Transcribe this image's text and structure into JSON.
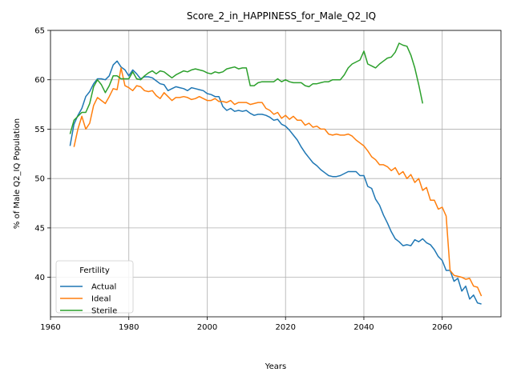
{
  "chart_data": {
    "type": "line",
    "title": "Score_2_in_HAPPINESS_for_Male_Q2_IQ",
    "xlabel": "Years",
    "ylabel": "% of Male Q2_IQ Population",
    "xlim": [
      1960,
      2075
    ],
    "ylim": [
      36,
      65
    ],
    "xticks": [
      1960,
      1980,
      2000,
      2020,
      2040,
      2060
    ],
    "yticks": [
      40,
      45,
      50,
      55,
      60,
      65
    ],
    "grid": true,
    "legend": {
      "title": "Fertility",
      "placement": "lower-left"
    },
    "series": [
      {
        "name": "Actual",
        "color": "#1f77b4",
        "x": [
          1965,
          1966,
          1967,
          1968,
          1969,
          1970,
          1971,
          1972,
          1973,
          1974,
          1975,
          1976,
          1977,
          1978,
          1979,
          1980,
          1981,
          1982,
          1983,
          1984,
          1985,
          1986,
          1987,
          1988,
          1989,
          1990,
          1991,
          1992,
          1993,
          1994,
          1995,
          1996,
          1997,
          1998,
          1999,
          2000,
          2001,
          2002,
          2003,
          2004,
          2005,
          2006,
          2007,
          2008,
          2009,
          2010,
          2011,
          2012,
          2013,
          2014,
          2015,
          2016,
          2017,
          2018,
          2019,
          2020,
          2021,
          2022,
          2023,
          2024,
          2025,
          2026,
          2027,
          2028,
          2029,
          2030,
          2031,
          2032,
          2033,
          2034,
          2035,
          2036,
          2037,
          2038,
          2039,
          2040,
          2041,
          2042,
          2043,
          2044,
          2045,
          2046,
          2047,
          2048,
          2049,
          2050,
          2051,
          2052,
          2053,
          2054,
          2055,
          2056,
          2057,
          2058,
          2059,
          2060,
          2061,
          2062,
          2063,
          2064,
          2065,
          2066,
          2067,
          2068,
          2069,
          2070
        ],
        "values": [
          53.3,
          55.5,
          56.4,
          57.1,
          58.3,
          58.8,
          59.6,
          60.1,
          60.1,
          60.0,
          60.4,
          61.5,
          61.9,
          61.3,
          61.0,
          60.4,
          61.0,
          60.6,
          60.1,
          60.3,
          60.3,
          60.2,
          59.9,
          59.6,
          59.5,
          58.9,
          59.1,
          59.3,
          59.2,
          59.1,
          58.9,
          59.2,
          59.1,
          59.0,
          58.9,
          58.6,
          58.5,
          58.3,
          58.3,
          57.3,
          56.9,
          57.1,
          56.8,
          56.9,
          56.8,
          56.9,
          56.6,
          56.4,
          56.5,
          56.5,
          56.4,
          56.2,
          55.9,
          56.0,
          55.5,
          55.3,
          54.9,
          54.4,
          53.9,
          53.2,
          52.6,
          52.1,
          51.6,
          51.3,
          50.9,
          50.6,
          50.3,
          50.2,
          50.2,
          50.3,
          50.5,
          50.7,
          50.7,
          50.7,
          50.3,
          50.3,
          49.2,
          49.0,
          47.9,
          47.3,
          46.3,
          45.5,
          44.6,
          43.9,
          43.6,
          43.2,
          43.3,
          43.2,
          43.8,
          43.6,
          43.9,
          43.5,
          43.3,
          42.8,
          42.1,
          41.7,
          40.7,
          40.7,
          39.6,
          39.9,
          38.6,
          39.1,
          37.8,
          38.2,
          37.4,
          37.3
        ]
      },
      {
        "name": "Ideal",
        "color": "#ff7f0e",
        "x": [
          1966,
          1967,
          1968,
          1969,
          1970,
          1971,
          1972,
          1973,
          1974,
          1975,
          1976,
          1977,
          1978,
          1979,
          1980,
          1981,
          1982,
          1983,
          1984,
          1985,
          1986,
          1987,
          1988,
          1989,
          1990,
          1991,
          1992,
          1993,
          1994,
          1995,
          1996,
          1997,
          1998,
          1999,
          2000,
          2001,
          2002,
          2003,
          2004,
          2005,
          2006,
          2007,
          2008,
          2009,
          2010,
          2011,
          2012,
          2013,
          2014,
          2015,
          2016,
          2017,
          2018,
          2019,
          2020,
          2021,
          2022,
          2023,
          2024,
          2025,
          2026,
          2027,
          2028,
          2029,
          2030,
          2031,
          2032,
          2033,
          2034,
          2035,
          2036,
          2037,
          2038,
          2039,
          2040,
          2041,
          2042,
          2043,
          2044,
          2045,
          2046,
          2047,
          2048,
          2049,
          2050,
          2051,
          2052,
          2053,
          2054,
          2055,
          2056,
          2057,
          2058,
          2059,
          2060,
          2061,
          2062,
          2063,
          2064,
          2065,
          2066,
          2067,
          2068,
          2069,
          2070
        ],
        "values": [
          53.2,
          55.0,
          56.3,
          55.0,
          55.6,
          57.4,
          58.2,
          57.9,
          57.6,
          58.3,
          59.1,
          59.0,
          61.2,
          59.4,
          59.2,
          58.9,
          59.4,
          59.3,
          58.9,
          58.8,
          58.9,
          58.4,
          58.1,
          58.7,
          58.3,
          57.9,
          58.2,
          58.2,
          58.3,
          58.2,
          58.0,
          58.1,
          58.3,
          58.1,
          57.9,
          57.9,
          58.1,
          57.8,
          57.8,
          57.7,
          57.9,
          57.5,
          57.7,
          57.7,
          57.7,
          57.5,
          57.6,
          57.7,
          57.7,
          57.1,
          56.9,
          56.5,
          56.7,
          56.1,
          56.4,
          56.0,
          56.3,
          55.9,
          55.9,
          55.4,
          55.6,
          55.2,
          55.3,
          55.0,
          55.0,
          54.5,
          54.4,
          54.5,
          54.4,
          54.4,
          54.5,
          54.3,
          53.9,
          53.6,
          53.3,
          52.8,
          52.2,
          51.9,
          51.4,
          51.4,
          51.2,
          50.8,
          51.1,
          50.4,
          50.7,
          50.0,
          50.4,
          49.6,
          50.0,
          48.8,
          49.1,
          47.8,
          47.8,
          46.9,
          47.1,
          46.2,
          40.7,
          40.2,
          40.1,
          40.0,
          39.8,
          39.9,
          39.1,
          39.0,
          38.1
        ]
      },
      {
        "name": "Sterile",
        "color": "#2ca02c",
        "x": [
          1965,
          1966,
          1967,
          1968,
          1969,
          1970,
          1971,
          1972,
          1973,
          1974,
          1975,
          1976,
          1977,
          1978,
          1979,
          1980,
          1981,
          1982,
          1983,
          1984,
          1985,
          1986,
          1987,
          1988,
          1989,
          1990,
          1991,
          1992,
          1993,
          1994,
          1995,
          1996,
          1997,
          1998,
          1999,
          2000,
          2001,
          2002,
          2003,
          2004,
          2005,
          2006,
          2007,
          2008,
          2009,
          2010,
          2011,
          2012,
          2013,
          2014,
          2015,
          2016,
          2017,
          2018,
          2019,
          2020,
          2021,
          2022,
          2023,
          2024,
          2025,
          2026,
          2027,
          2028,
          2029,
          2030,
          2031,
          2032,
          2033,
          2034,
          2035,
          2036,
          2037,
          2038,
          2039,
          2040,
          2041,
          2042,
          2043,
          2044,
          2045,
          2046,
          2047,
          2048,
          2049,
          2050,
          2051,
          2052,
          2053,
          2054,
          2055
        ],
        "values": [
          54.5,
          55.9,
          56.3,
          56.7,
          56.7,
          57.6,
          59.3,
          60.0,
          59.5,
          58.7,
          59.4,
          60.4,
          60.4,
          60.1,
          60.1,
          60.1,
          60.8,
          60.1,
          60.0,
          60.4,
          60.7,
          60.9,
          60.6,
          60.9,
          60.8,
          60.5,
          60.2,
          60.5,
          60.7,
          60.9,
          60.8,
          61.0,
          61.1,
          61.0,
          60.9,
          60.7,
          60.6,
          60.8,
          60.7,
          60.8,
          61.1,
          61.2,
          61.3,
          61.1,
          61.2,
          61.2,
          59.4,
          59.4,
          59.7,
          59.8,
          59.8,
          59.8,
          59.8,
          60.1,
          59.8,
          60.0,
          59.8,
          59.7,
          59.7,
          59.7,
          59.4,
          59.3,
          59.6,
          59.6,
          59.7,
          59.8,
          59.8,
          60.0,
          60.0,
          60.0,
          60.5,
          61.2,
          61.6,
          61.8,
          62.0,
          62.9,
          61.6,
          61.4,
          61.2,
          61.6,
          61.9,
          62.2,
          62.3,
          62.8,
          63.7,
          63.5,
          63.4,
          62.5,
          61.2,
          59.5,
          57.6
        ]
      }
    ]
  }
}
